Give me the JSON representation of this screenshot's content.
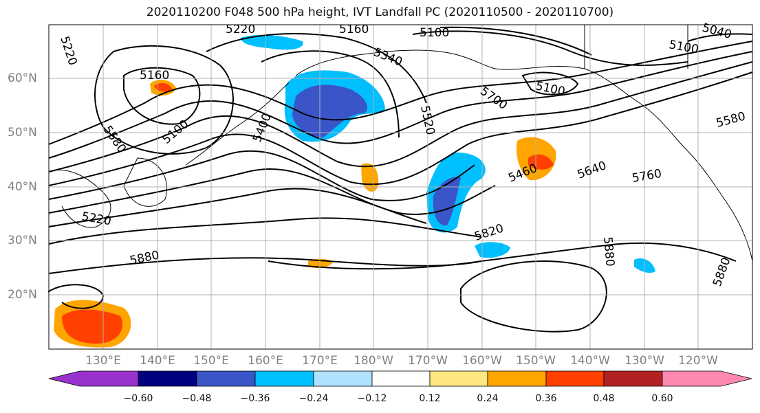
{
  "title": "2020110200 F048 500 hPa height, IVT Landfall PC (2020110500 - 2020110700)",
  "map": {
    "lat_labels": [
      "60°N",
      "50°N",
      "40°N",
      "30°N",
      "20°N"
    ],
    "lon_labels": [
      "130°E",
      "140°E",
      "150°E",
      "160°E",
      "170°E",
      "180°W",
      "170°W",
      "160°W",
      "150°W",
      "140°W",
      "130°W",
      "120°W"
    ],
    "contour_labels": [
      {
        "text": "5220"
      },
      {
        "text": "5160"
      },
      {
        "text": "5100"
      },
      {
        "text": "5040"
      },
      {
        "text": "5100"
      },
      {
        "text": "5340"
      },
      {
        "text": "5100"
      },
      {
        "text": "5160"
      },
      {
        "text": "5220"
      },
      {
        "text": "5100"
      },
      {
        "text": "5400"
      },
      {
        "text": "5520"
      },
      {
        "text": "5580"
      },
      {
        "text": "5460"
      },
      {
        "text": "5640"
      },
      {
        "text": "5760"
      },
      {
        "text": "5580"
      },
      {
        "text": "5700"
      },
      {
        "text": "5820"
      },
      {
        "text": "5880"
      },
      {
        "text": "5880"
      },
      {
        "text": "5880"
      },
      {
        "text": "5220"
      }
    ],
    "colors": {
      "ocean": "#ffffff",
      "grid": "#b0b0b0",
      "contour": "#000000"
    }
  },
  "colorbar": {
    "ticks": [
      "−0.60",
      "−0.48",
      "−0.36",
      "−0.24",
      "−0.12",
      "0.12",
      "0.24",
      "0.36",
      "0.48",
      "0.60"
    ],
    "colors": [
      "#9932cc",
      "#000080",
      "#3a55c8",
      "#00bfff",
      "#b0e2ff",
      "#ffffff",
      "#ffe680",
      "#ffa500",
      "#ff4000",
      "#b22222",
      "#ff88b0"
    ]
  }
}
